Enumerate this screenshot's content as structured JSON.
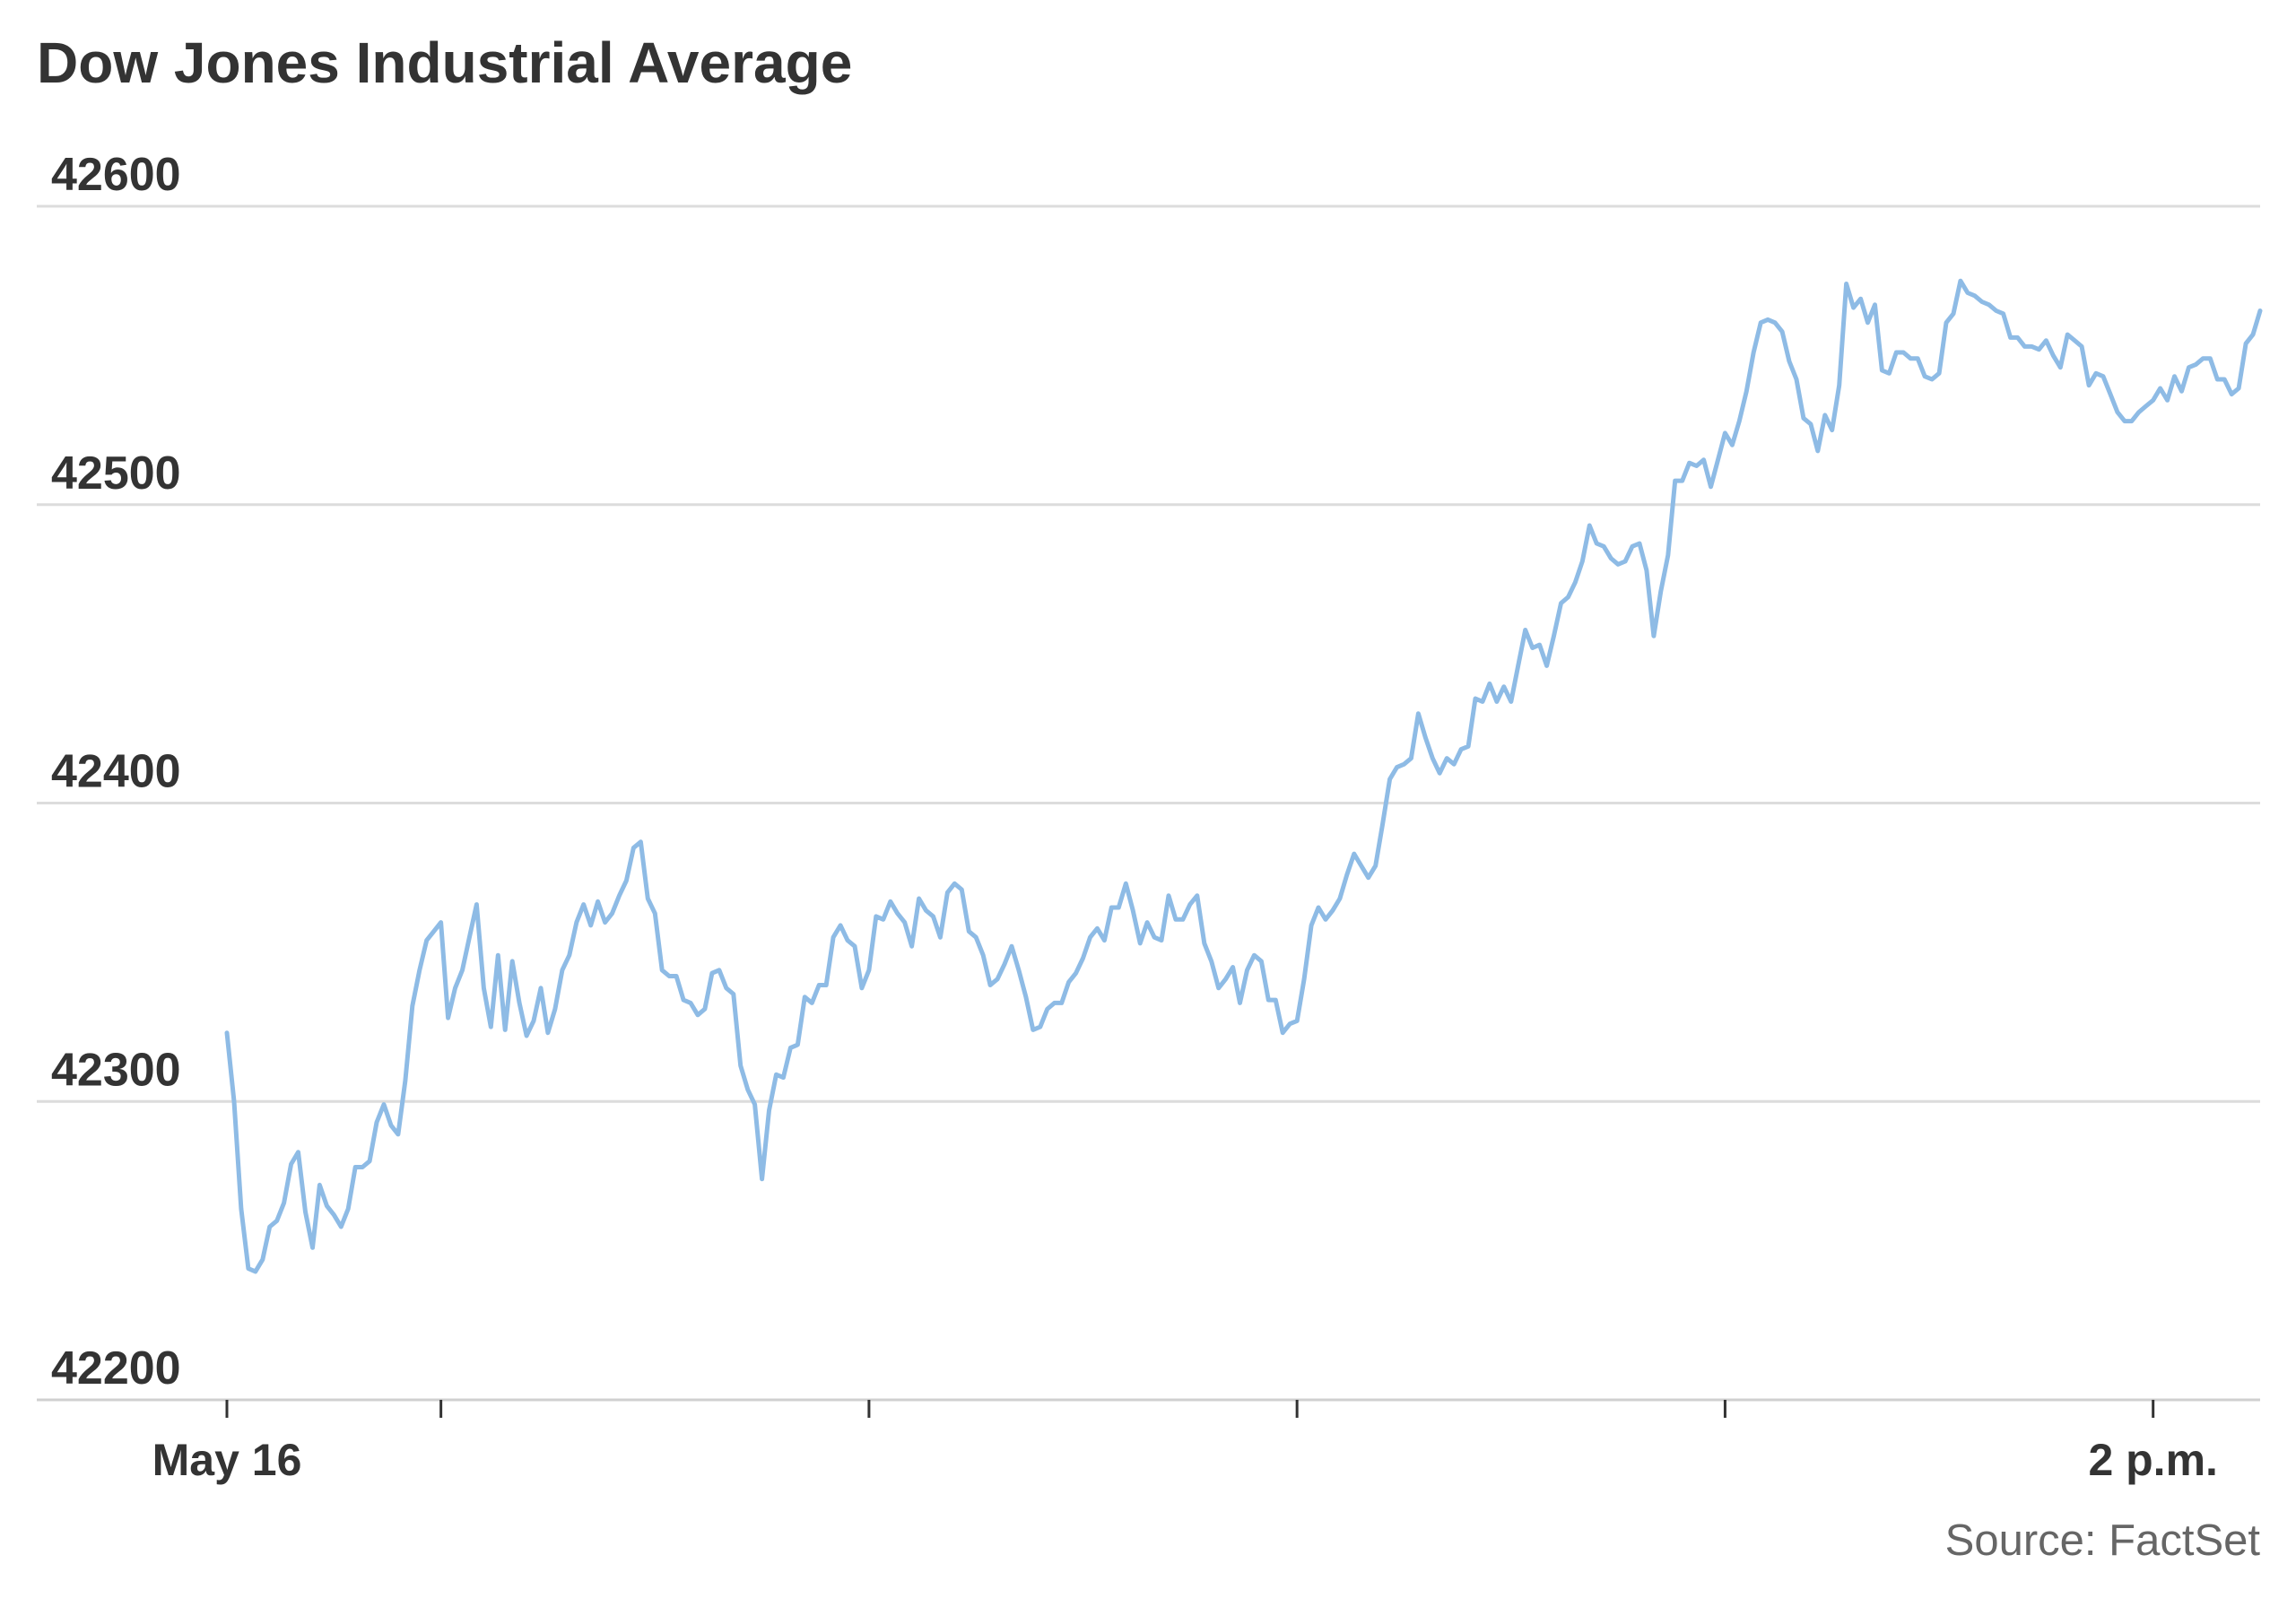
{
  "colors": {
    "line": "#8ebbe5"
  },
  "chart_data": {
    "type": "line",
    "title": "Dow Jones Industrial Average",
    "source": "Source: FactSet",
    "ylim": [
      42200,
      42600
    ],
    "yticks": [
      42200,
      42300,
      42400,
      42500,
      42600
    ],
    "xlim": [
      "09:30",
      "14:15"
    ],
    "xticks": [
      "09:30",
      "10:00",
      "11:00",
      "12:00",
      "13:00",
      "14:00"
    ],
    "xlabels": [
      {
        "at": "09:30",
        "text": "May 16"
      },
      {
        "at": "14:00",
        "text": "2 p.m."
      }
    ],
    "grid": "horizontal",
    "legend": "none",
    "x": [
      "09:30",
      "09:31",
      "09:32",
      "09:33",
      "09:34",
      "09:35",
      "09:36",
      "09:37",
      "09:38",
      "09:39",
      "09:40",
      "09:41",
      "09:42",
      "09:43",
      "09:44",
      "09:45",
      "09:46",
      "09:47",
      "09:48",
      "09:49",
      "09:50",
      "09:51",
      "09:52",
      "09:53",
      "09:54",
      "09:55",
      "09:56",
      "09:57",
      "09:58",
      "09:59",
      "10:00",
      "10:01",
      "10:02",
      "10:03",
      "10:04",
      "10:05",
      "10:06",
      "10:07",
      "10:08",
      "10:09",
      "10:10",
      "10:11",
      "10:12",
      "10:13",
      "10:14",
      "10:15",
      "10:16",
      "10:17",
      "10:18",
      "10:19",
      "10:20",
      "10:21",
      "10:22",
      "10:23",
      "10:24",
      "10:25",
      "10:26",
      "10:27",
      "10:28",
      "10:29",
      "10:30",
      "10:31",
      "10:32",
      "10:33",
      "10:34",
      "10:35",
      "10:36",
      "10:37",
      "10:38",
      "10:39",
      "10:40",
      "10:41",
      "10:42",
      "10:43",
      "10:44",
      "10:45",
      "10:46",
      "10:47",
      "10:48",
      "10:49",
      "10:50",
      "10:51",
      "10:52",
      "10:53",
      "10:54",
      "10:55",
      "10:56",
      "10:57",
      "10:58",
      "10:59",
      "11:00",
      "11:01",
      "11:02",
      "11:03",
      "11:04",
      "11:05",
      "11:06",
      "11:07",
      "11:08",
      "11:09",
      "11:10",
      "11:11",
      "11:12",
      "11:13",
      "11:14",
      "11:15",
      "11:16",
      "11:17",
      "11:18",
      "11:19",
      "11:20",
      "11:21",
      "11:22",
      "11:23",
      "11:24",
      "11:25",
      "11:26",
      "11:27",
      "11:28",
      "11:29",
      "11:30",
      "11:31",
      "11:32",
      "11:33",
      "11:34",
      "11:35",
      "11:36",
      "11:37",
      "11:38",
      "11:39",
      "11:40",
      "11:41",
      "11:42",
      "11:43",
      "11:44",
      "11:45",
      "11:46",
      "11:47",
      "11:48",
      "11:49",
      "11:50",
      "11:51",
      "11:52",
      "11:53",
      "11:54",
      "11:55",
      "11:56",
      "11:57",
      "11:58",
      "11:59",
      "12:00",
      "12:01",
      "12:02",
      "12:03",
      "12:04",
      "12:05",
      "12:06",
      "12:07",
      "12:08",
      "12:09",
      "12:10",
      "12:11",
      "12:12",
      "12:13",
      "12:14",
      "12:15",
      "12:16",
      "12:17",
      "12:18",
      "12:19",
      "12:20",
      "12:21",
      "12:22",
      "12:23",
      "12:24",
      "12:25",
      "12:26",
      "12:27",
      "12:28",
      "12:29",
      "12:30",
      "12:31",
      "12:32",
      "12:33",
      "12:34",
      "12:35",
      "12:36",
      "12:37",
      "12:38",
      "12:39",
      "12:40",
      "12:41",
      "12:42",
      "12:43",
      "12:44",
      "12:45",
      "12:46",
      "12:47",
      "12:48",
      "12:49",
      "12:50",
      "12:51",
      "12:52",
      "12:53",
      "12:54",
      "12:55",
      "12:56",
      "12:57",
      "12:58",
      "12:59",
      "13:00",
      "13:01",
      "13:02",
      "13:03",
      "13:04",
      "13:05",
      "13:06",
      "13:07",
      "13:08",
      "13:09",
      "13:10",
      "13:11",
      "13:12",
      "13:13",
      "13:14",
      "13:15",
      "13:16",
      "13:17",
      "13:18",
      "13:19",
      "13:20",
      "13:21",
      "13:22",
      "13:23",
      "13:24",
      "13:25",
      "13:26",
      "13:27",
      "13:28",
      "13:29",
      "13:30",
      "13:31",
      "13:32",
      "13:33",
      "13:34",
      "13:35",
      "13:36",
      "13:37",
      "13:38",
      "13:39",
      "13:40",
      "13:41",
      "13:42",
      "13:43",
      "13:44",
      "13:45",
      "13:46",
      "13:47",
      "13:48",
      "13:49",
      "13:50",
      "13:51",
      "13:52",
      "13:53",
      "13:54",
      "13:55",
      "13:56",
      "13:57",
      "13:58",
      "13:59",
      "14:00",
      "14:01",
      "14:02",
      "14:03",
      "14:04",
      "14:05",
      "14:06",
      "14:07",
      "14:08",
      "14:09",
      "14:10",
      "14:11",
      "14:12",
      "14:13",
      "14:14",
      "14:15"
    ],
    "y": [
      42323,
      42300,
      42264,
      42244,
      42243,
      42247,
      42258,
      42260,
      42266,
      42279,
      42283,
      42263,
      42251,
      42272,
      42265,
      42262,
      42258,
      42264,
      42278,
      42278,
      42280,
      42293,
      42299,
      42292,
      42289,
      42307,
      42332,
      42344,
      42354,
      42357,
      42360,
      42328,
      42338,
      42344,
      42355,
      42366,
      42338,
      42325,
      42349,
      42324,
      42347,
      42333,
      42322,
      42327,
      42338,
      42323,
      42331,
      42344,
      42349,
      42360,
      42366,
      42359,
      42367,
      42360,
      42363,
      42369,
      42374,
      42385,
      42387,
      42368,
      42363,
      42344,
      42342,
      42342,
      42334,
      42333,
      42329,
      42331,
      42343,
      42344,
      42338,
      42336,
      42312,
      42304,
      42299,
      42274,
      42297,
      42309,
      42308,
      42318,
      42319,
      42335,
      42333,
      42339,
      42339,
      42355,
      42359,
      42354,
      42352,
      42338,
      42344,
      42362,
      42361,
      42367,
      42363,
      42360,
      42352,
      42368,
      42364,
      42362,
      42355,
      42370,
      42373,
      42371,
      42357,
      42355,
      42349,
      42339,
      42341,
      42346,
      42352,
      42344,
      42335,
      42324,
      42325,
      42331,
      42333,
      42333,
      42340,
      42343,
      42348,
      42355,
      42358,
      42354,
      42365,
      42365,
      42373,
      42364,
      42353,
      42360,
      42355,
      42354,
      42369,
      42361,
      42361,
      42366,
      42369,
      42353,
      42347,
      42338,
      42341,
      42345,
      42333,
      42344,
      42349,
      42347,
      42334,
      42334,
      42323,
      42326,
      42327,
      42341,
      42359,
      42365,
      42361,
      42364,
      42368,
      42376,
      42383,
      42379,
      42375,
      42379,
      42393,
      42408,
      42412,
      42413,
      42415,
      42430,
      42422,
      42415,
      42410,
      42415,
      42413,
      42418,
      42419,
      42435,
      42434,
      42440,
      42434,
      42439,
      42434,
      42446,
      42458,
      42452,
      42453,
      42446,
      42456,
      42467,
      42469,
      42474,
      42481,
      42493,
      42487,
      42486,
      42482,
      42480,
      42481,
      42486,
      42487,
      42478,
      42456,
      42471,
      42483,
      42508,
      42508,
      42514,
      42513,
      42515,
      42506,
      42515,
      42524,
      42520,
      42528,
      42538,
      42551,
      42561,
      42562,
      42561,
      42558,
      42548,
      42542,
      42529,
      42527,
      42518,
      42530,
      42525,
      42540,
      42574,
      42566,
      42569,
      42561,
      42567,
      42545,
      42544,
      42551,
      42551,
      42549,
      42549,
      42543,
      42542,
      42544,
      42561,
      42564,
      42575,
      42571,
      42570,
      42568,
      42567,
      42565,
      42564,
      42556,
      42556,
      42553,
      42553,
      42552,
      42555,
      42550,
      42546,
      42557,
      42555,
      42553,
      42540,
      42544,
      42543,
      42537,
      42531,
      42528,
      42528,
      42531,
      42533,
      42535,
      42539,
      42535,
      42543,
      42538,
      42546,
      42547,
      42549,
      42549,
      42542,
      42542,
      42537,
      42539,
      42554,
      42557,
      42565
    ]
  }
}
